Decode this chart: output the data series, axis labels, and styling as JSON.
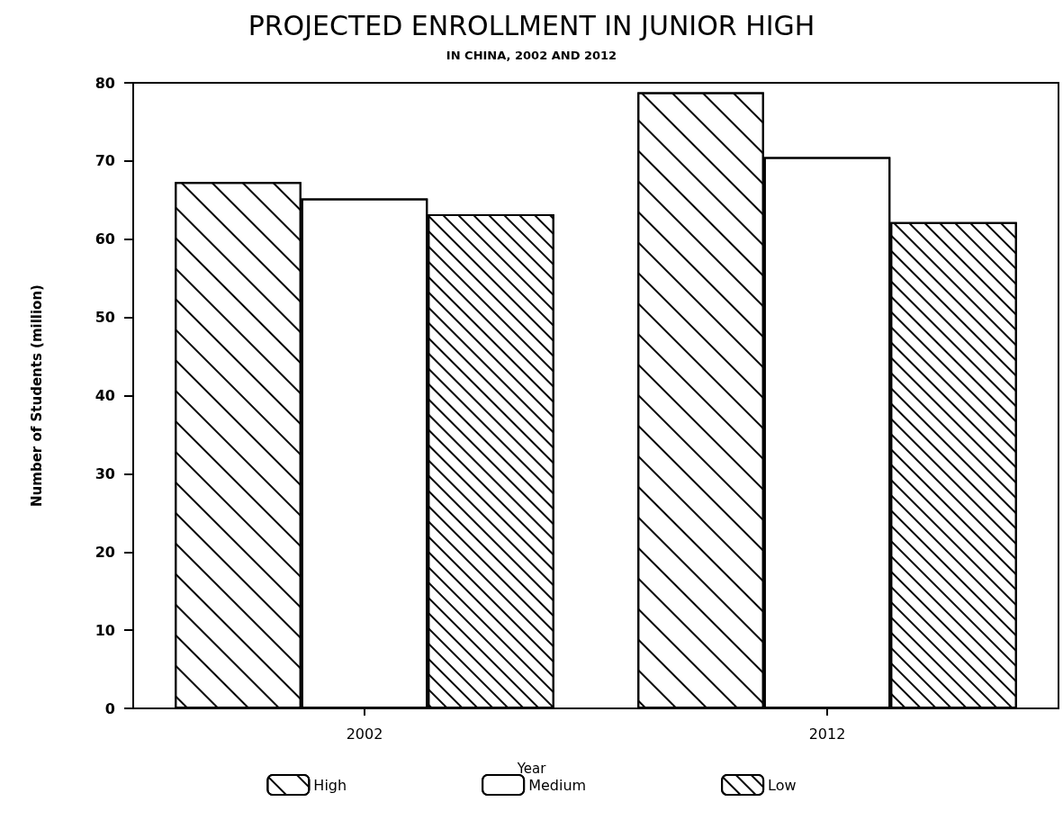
{
  "chart_data": {
    "type": "bar",
    "title": "PROJECTED ENROLLMENT IN JUNIOR HIGH",
    "subtitle": "IN CHINA, 2002 AND 2012",
    "xlabel": "Year",
    "ylabel": "Number of Students (million)",
    "categories": [
      "2002",
      "2012"
    ],
    "series": [
      {
        "name": "High",
        "color": "#000000",
        "values": [
          67.3,
          78.8
        ]
      },
      {
        "name": "Medium",
        "color": "#000000",
        "values": [
          65.2,
          70.5
        ]
      },
      {
        "name": "Low",
        "color": "#000000",
        "values": [
          63.2,
          62.2
        ]
      }
    ],
    "ylim": [
      0,
      80
    ],
    "yticks": [
      0,
      10,
      20,
      30,
      40,
      50,
      60,
      70,
      80
    ],
    "grid": false,
    "legend": "bottom"
  }
}
